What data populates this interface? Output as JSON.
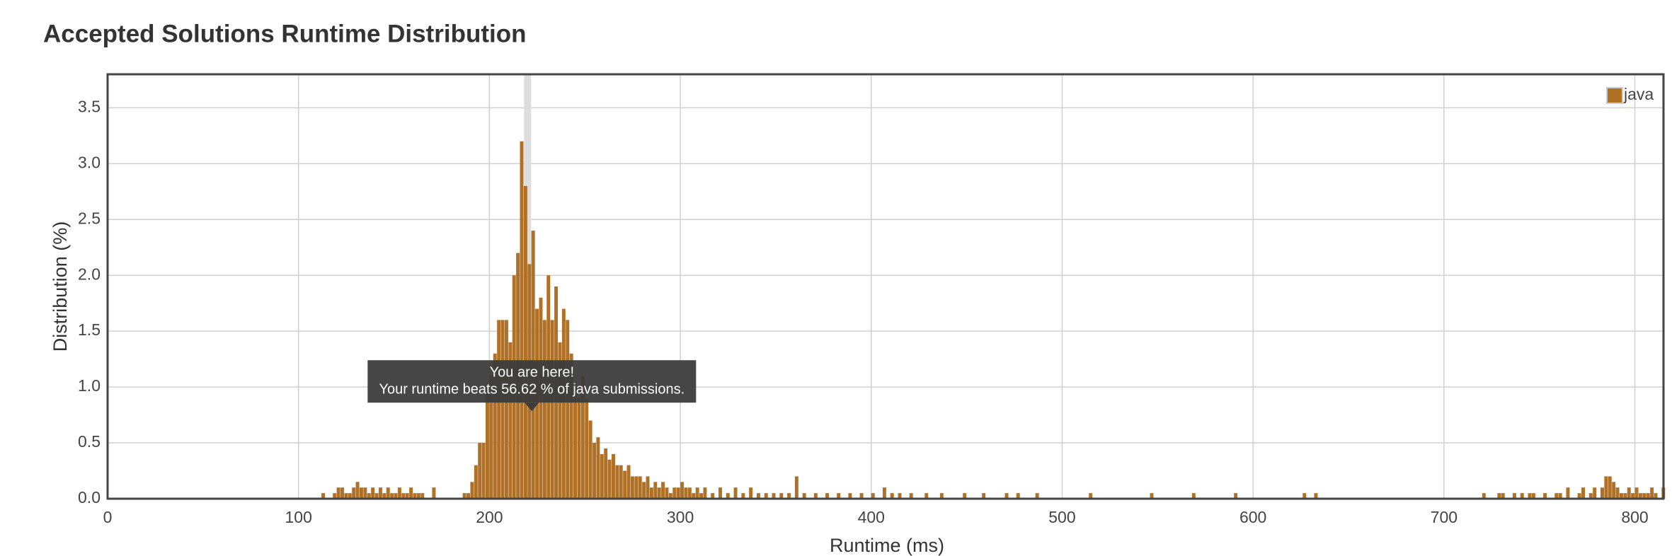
{
  "chart_data": {
    "type": "bar",
    "title": "Accepted Solutions Runtime Distribution",
    "x_label": "Runtime (ms)",
    "y_label": "Distribution (%)",
    "color": "#b07127",
    "grid": true,
    "legend": "top-right",
    "series": [
      {
        "name": "java",
        "color": "#b07127",
        "x": [
          112,
          118,
          120,
          122,
          124,
          126,
          128,
          130,
          132,
          134,
          136,
          138,
          140,
          142,
          144,
          146,
          148,
          150,
          152,
          154,
          156,
          158,
          160,
          162,
          164,
          170,
          186,
          188,
          190,
          192,
          194,
          196,
          198,
          200,
          202,
          204,
          206,
          208,
          210,
          212,
          214,
          216,
          218,
          220,
          222,
          224,
          226,
          228,
          230,
          232,
          234,
          236,
          238,
          240,
          242,
          244,
          246,
          248,
          250,
          252,
          254,
          256,
          258,
          260,
          262,
          264,
          266,
          268,
          270,
          272,
          274,
          276,
          278,
          280,
          282,
          284,
          286,
          288,
          290,
          292,
          294,
          296,
          298,
          300,
          302,
          304,
          306,
          308,
          310,
          312,
          316,
          320,
          324,
          328,
          332,
          336,
          340,
          344,
          348,
          352,
          356,
          360,
          364,
          370,
          376,
          382,
          388,
          394,
          400,
          406,
          410,
          414,
          420,
          428,
          436,
          448,
          458,
          470,
          476,
          486,
          514,
          546,
          568,
          590,
          626,
          632,
          720,
          728,
          730,
          736,
          740,
          744,
          746,
          752,
          758,
          760,
          764,
          770,
          772,
          776,
          778,
          782,
          784,
          786,
          788,
          790,
          792,
          794,
          796,
          798,
          800,
          802,
          804,
          806,
          808,
          810,
          814
        ],
        "values": [
          0.05,
          0.05,
          0.1,
          0.1,
          0.05,
          0.05,
          0.1,
          0.15,
          0.1,
          0.1,
          0.05,
          0.1,
          0.05,
          0.1,
          0.05,
          0.1,
          0.05,
          0.05,
          0.1,
          0.05,
          0.05,
          0.1,
          0.05,
          0.05,
          0.05,
          0.1,
          0.05,
          0.05,
          0.15,
          0.3,
          0.5,
          0.5,
          1.0,
          1.1,
          1.3,
          1.6,
          1.6,
          1.6,
          1.4,
          2.0,
          2.2,
          3.2,
          2.8,
          2.1,
          2.4,
          1.7,
          1.8,
          1.6,
          2.0,
          1.6,
          1.9,
          1.4,
          1.7,
          1.6,
          1.3,
          1.0,
          0.9,
          1.1,
          0.9,
          0.7,
          0.5,
          0.55,
          0.4,
          0.45,
          0.35,
          0.4,
          0.3,
          0.3,
          0.25,
          0.3,
          0.2,
          0.2,
          0.2,
          0.15,
          0.2,
          0.1,
          0.15,
          0.1,
          0.15,
          0.1,
          0.05,
          0.1,
          0.1,
          0.15,
          0.1,
          0.1,
          0.05,
          0.1,
          0.05,
          0.1,
          0.05,
          0.1,
          0.05,
          0.1,
          0.05,
          0.1,
          0.05,
          0.05,
          0.05,
          0.05,
          0.05,
          0.2,
          0.05,
          0.05,
          0.05,
          0.05,
          0.05,
          0.05,
          0.05,
          0.1,
          0.05,
          0.05,
          0.05,
          0.05,
          0.05,
          0.05,
          0.05,
          0.05,
          0.05,
          0.05,
          0.05,
          0.05,
          0.05,
          0.05,
          0.05,
          0.05,
          0.05,
          0.05,
          0.05,
          0.05,
          0.05,
          0.05,
          0.05,
          0.05,
          0.05,
          0.05,
          0.1,
          0.05,
          0.1,
          0.05,
          0.1,
          0.1,
          0.2,
          0.2,
          0.15,
          0.1,
          0.05,
          0.05,
          0.1,
          0.05,
          0.1,
          0.05,
          0.05,
          0.05,
          0.1,
          0.05,
          0.1
        ]
      }
    ],
    "highlight_x": 220,
    "annotation": {
      "title": "You are here!",
      "text": "Your runtime beats 56.62 % of java submissions."
    },
    "xlim": [
      0,
      815
    ],
    "xticks": [
      0,
      100,
      200,
      300,
      400,
      500,
      600,
      700,
      800
    ],
    "ylim": [
      0,
      3.8
    ],
    "yticks": [
      {
        "value": 0,
        "label": "0.0"
      },
      0.5,
      {
        "value": 1,
        "label": "1.0"
      },
      1.5,
      {
        "value": 2,
        "label": "2.0"
      },
      2.5,
      {
        "value": 3,
        "label": "3.0"
      },
      3.5
    ]
  }
}
